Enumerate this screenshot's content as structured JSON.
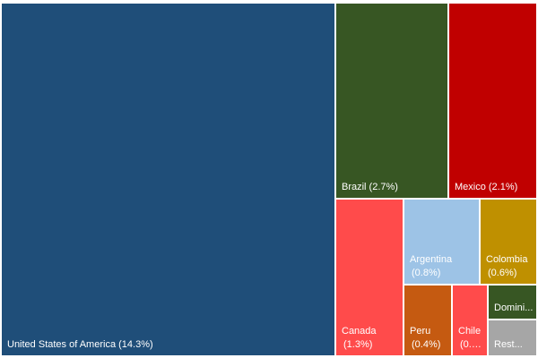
{
  "chart_data": {
    "type": "treemap",
    "unit": "%",
    "title": "",
    "items": [
      {
        "label_lines": [
          "United States of America (14.3%)"
        ],
        "name": "United States of America",
        "value": 14.3,
        "color": "#1f4e79"
      },
      {
        "label_lines": [
          "Brazil (2.7%)"
        ],
        "name": "Brazil",
        "value": 2.7,
        "color": "#375623"
      },
      {
        "label_lines": [
          "Mexico (2.1%)"
        ],
        "name": "Mexico",
        "value": 2.1,
        "color": "#c00000"
      },
      {
        "label_lines": [
          "Canada",
          "(1.3%)"
        ],
        "name": "Canada",
        "value": 1.3,
        "color": "#ff4b4b"
      },
      {
        "label_lines": [
          "Argentina",
          "(0.8%)"
        ],
        "name": "Argentina",
        "value": 0.8,
        "color": "#9dc3e6"
      },
      {
        "label_lines": [
          "Colombia",
          "(0.6%)"
        ],
        "name": "Colombia",
        "value": 0.6,
        "color": "#bf9000"
      },
      {
        "label_lines": [
          "Peru",
          "(0.4%)"
        ],
        "name": "Peru",
        "value": 0.4,
        "color": "#c55a11"
      },
      {
        "label_lines": [
          "Chile",
          "(0.3..."
        ],
        "name": "Chile",
        "value": 0.3,
        "color": "#ff4b4b"
      },
      {
        "label_lines": [
          "Domini..."
        ],
        "name": "Domini...",
        "value": null,
        "color": "#375623"
      },
      {
        "label_lines": [
          "Rest..."
        ],
        "name": "Rest...",
        "value": null,
        "color": "#a6a6a6"
      }
    ]
  }
}
